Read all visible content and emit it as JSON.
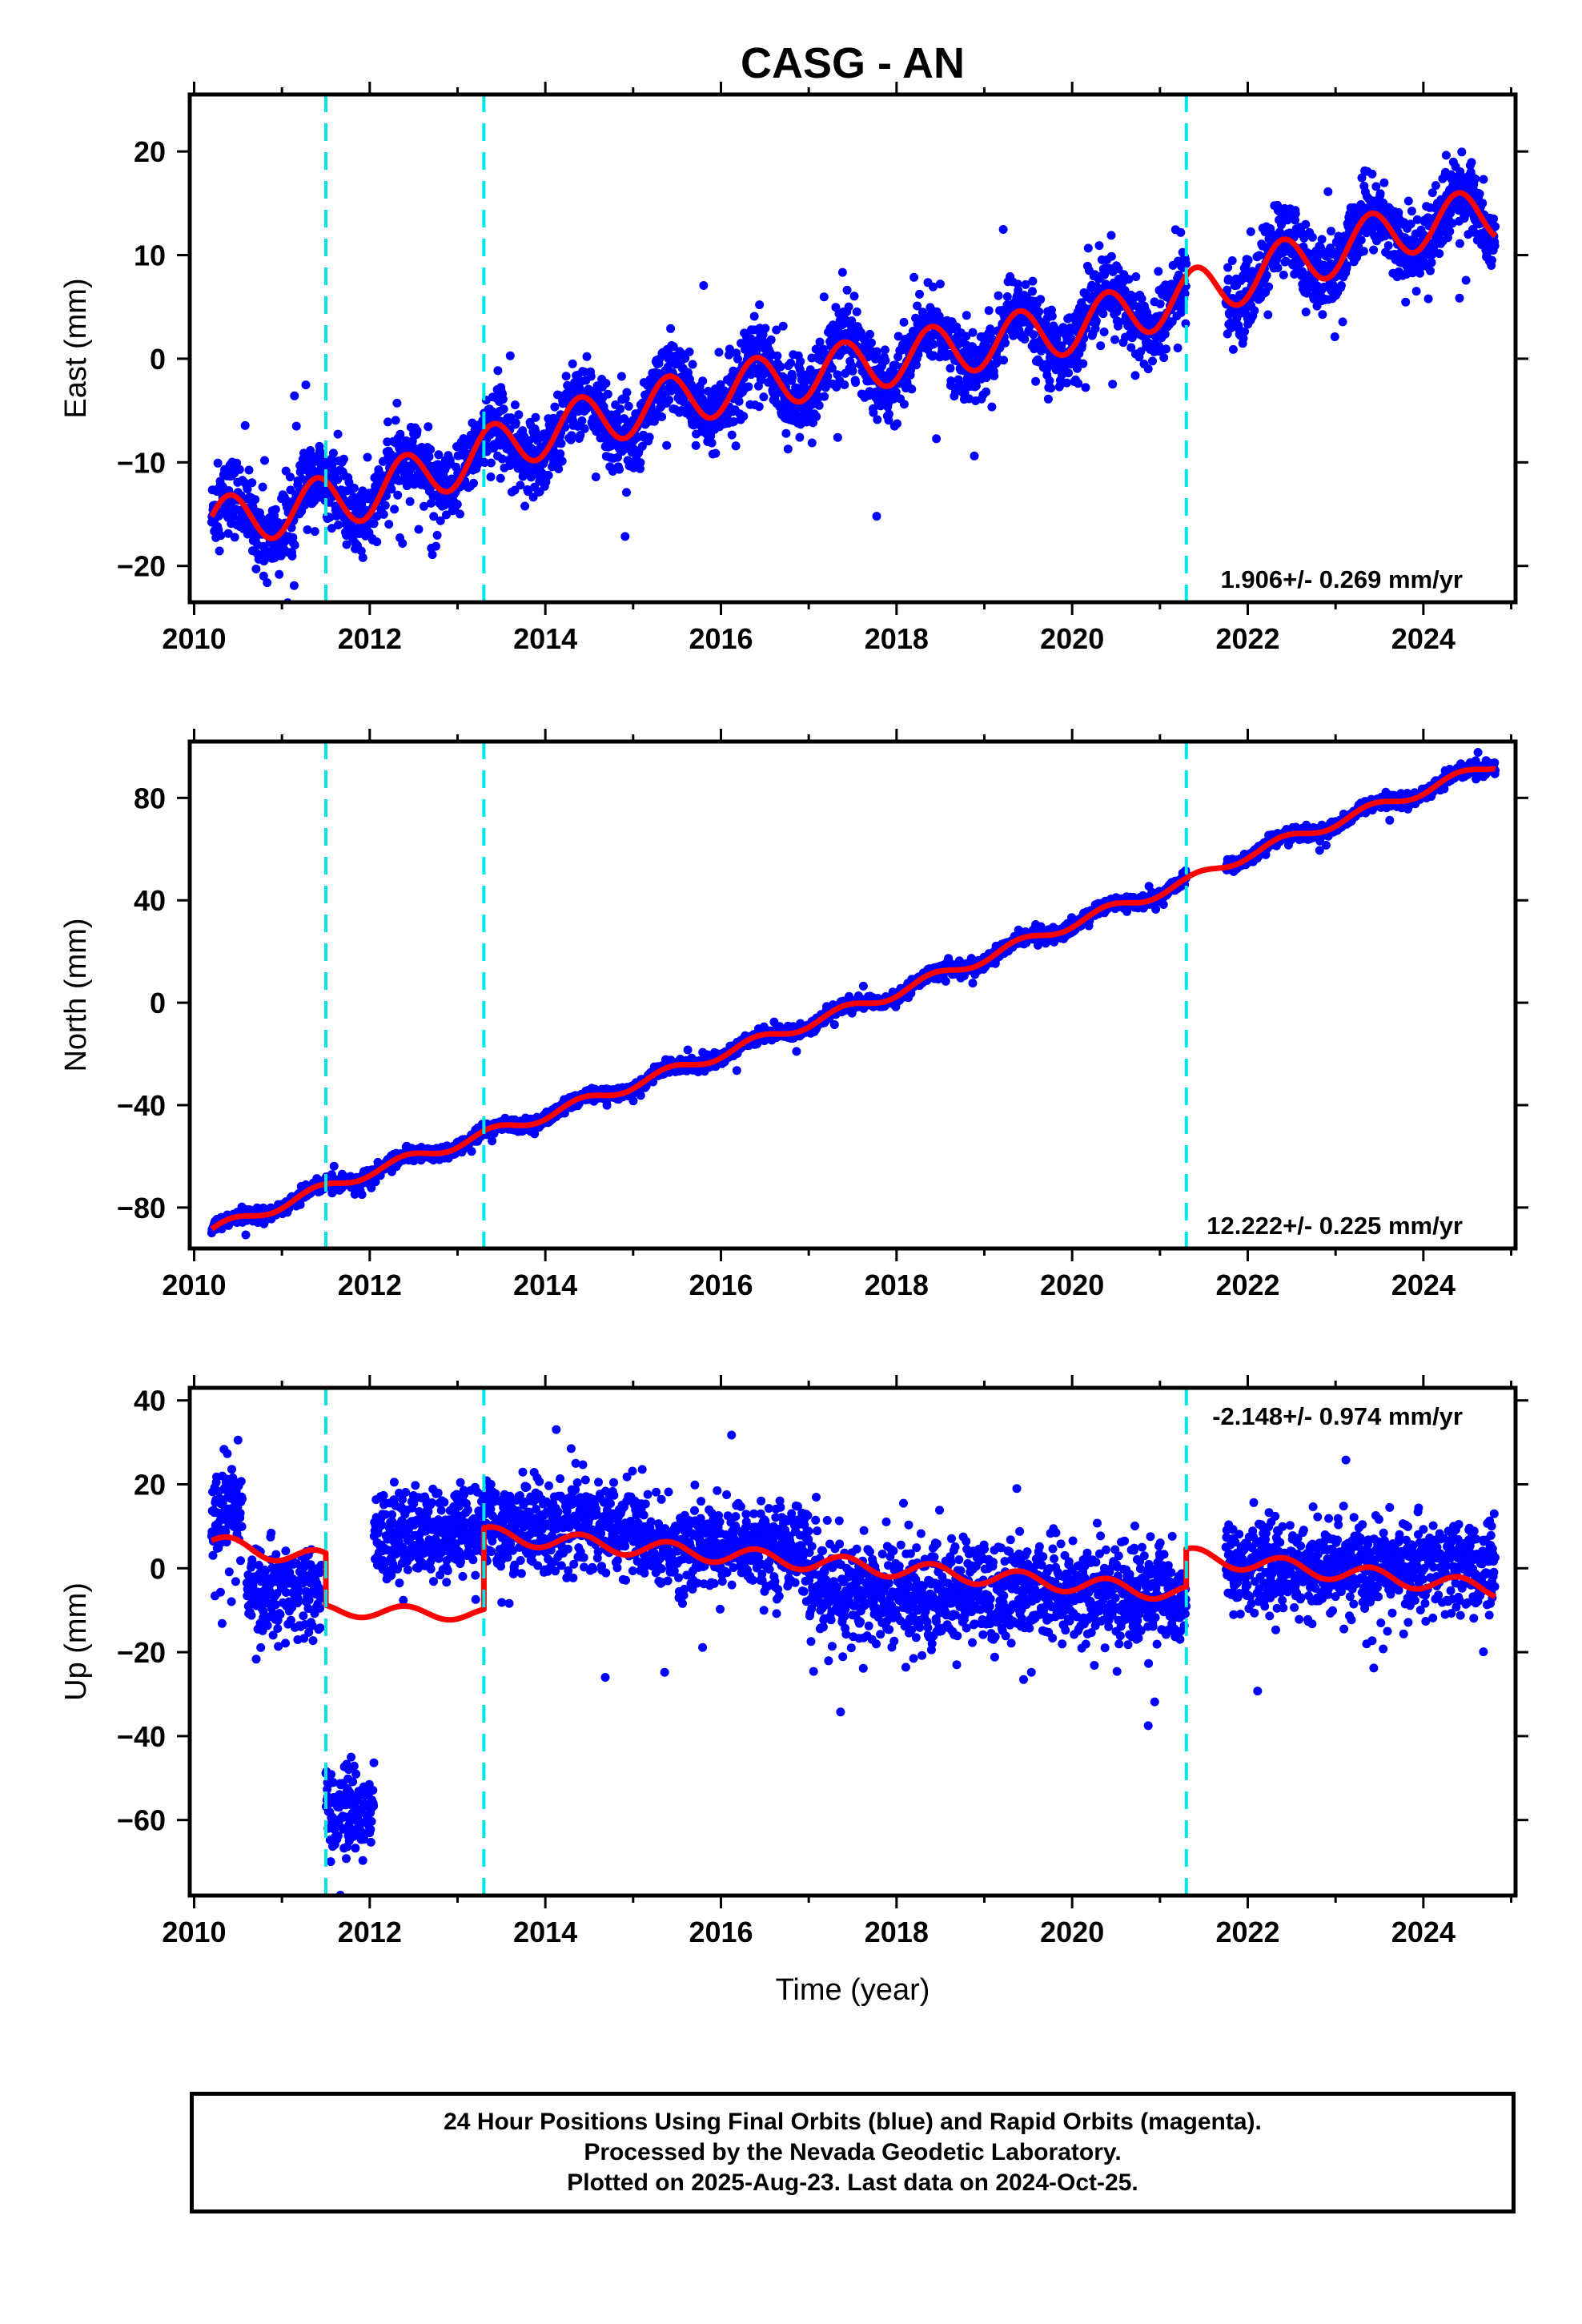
{
  "title": "CASG - AN",
  "footer": {
    "line1": "24 Hour Positions Using Final Orbits (blue) and Rapid Orbits (magenta).",
    "line2": "Processed by the Nevada Geodetic Laboratory.",
    "line3": "Plotted on 2025-Aug-23. Last data on 2024-Oct-25."
  },
  "chart_data": [
    {
      "type": "scatter",
      "component": "East",
      "ylabel": "East (mm)",
      "xlabel": "",
      "xlim": [
        2009.95,
        2025.05
      ],
      "ylim": [
        -23.5,
        25.5
      ],
      "xticks": [
        2010,
        2012,
        2014,
        2016,
        2018,
        2020,
        2022,
        2024
      ],
      "yticks": [
        -20,
        -10,
        0,
        10,
        20
      ],
      "rate_text": "1.906+/- 0.269 mm/yr",
      "rate_position": "bottom-right",
      "offset_lines": [
        2011.5,
        2013.3,
        2021.3
      ],
      "data_gap": [
        2021.3,
        2021.75
      ],
      "data_start": 2010.2,
      "data_end": 2024.82,
      "series": [
        {
          "name": "Final Orbits (blue)",
          "style": "points",
          "color": "#0000ff",
          "trend_points": [
            [
              2010.2,
              -16
            ],
            [
              2012,
              -13
            ],
            [
              2014,
              -7
            ],
            [
              2016,
              -3
            ],
            [
              2018,
              0
            ],
            [
              2020,
              3
            ],
            [
              2021.3,
              6
            ],
            [
              2022,
              8
            ],
            [
              2024,
              13
            ],
            [
              2024.8,
              14
            ]
          ],
          "spread_mm": 3.2,
          "seasonal_amp_mm": 2.5
        },
        {
          "name": "Model",
          "style": "line",
          "color": "#ff0000",
          "trend_points": [
            [
              2010.2,
              -16
            ],
            [
              2012,
              -13
            ],
            [
              2014,
              -7
            ],
            [
              2016,
              -3
            ],
            [
              2018,
              0
            ],
            [
              2020,
              3
            ],
            [
              2021.3,
              6
            ],
            [
              2022,
              8
            ],
            [
              2024,
              13
            ],
            [
              2024.8,
              14
            ]
          ],
          "seasonal_amp_mm": 2.5
        }
      ]
    },
    {
      "type": "scatter",
      "component": "North",
      "ylabel": "North (mm)",
      "xlabel": "",
      "xlim": [
        2009.95,
        2025.05
      ],
      "ylim": [
        -96,
        102
      ],
      "xticks": [
        2010,
        2012,
        2014,
        2016,
        2018,
        2020,
        2022,
        2024
      ],
      "yticks": [
        -80,
        -40,
        0,
        40,
        80
      ],
      "rate_text": "12.222+/- 0.225 mm/yr",
      "rate_position": "bottom-right",
      "offset_lines": [
        2011.5,
        2013.3,
        2021.3
      ],
      "data_gap": [
        2021.3,
        2021.75
      ],
      "data_start": 2010.2,
      "data_end": 2024.82,
      "series": [
        {
          "name": "Final Orbits (blue)",
          "style": "points",
          "color": "#0000ff",
          "trend_points": [
            [
              2010.2,
              -89
            ],
            [
              2012,
              -66
            ],
            [
              2014,
              -44
            ],
            [
              2016,
              -20
            ],
            [
              2018,
              4
            ],
            [
              2020,
              31
            ],
            [
              2021.3,
              47
            ],
            [
              2022,
              58
            ],
            [
              2024,
              83
            ],
            [
              2024.8,
              93
            ]
          ],
          "spread_mm": 2.2,
          "seasonal_amp_mm": 2.0
        },
        {
          "name": "Model",
          "style": "line",
          "color": "#ff0000",
          "trend_points": [
            [
              2010.2,
              -89
            ],
            [
              2012,
              -66
            ],
            [
              2014,
              -44
            ],
            [
              2016,
              -20
            ],
            [
              2018,
              4
            ],
            [
              2020,
              31
            ],
            [
              2021.3,
              47
            ],
            [
              2022,
              58
            ],
            [
              2024,
              83
            ],
            [
              2024.8,
              93
            ]
          ],
          "seasonal_amp_mm": 2.0
        }
      ]
    },
    {
      "type": "scatter",
      "component": "Up",
      "ylabel": "Up (mm)",
      "xlabel": "Time (year)",
      "xlim": [
        2009.95,
        2025.05
      ],
      "ylim": [
        -78,
        43
      ],
      "xticks": [
        2010,
        2012,
        2014,
        2016,
        2018,
        2020,
        2022,
        2024
      ],
      "yticks": [
        -60,
        -40,
        -20,
        0,
        20,
        40
      ],
      "rate_text": "-2.148+/- 0.974 mm/yr",
      "rate_position": "top-right",
      "offset_lines": [
        2011.5,
        2013.3,
        2021.3
      ],
      "data_gap": [
        2021.3,
        2021.75
      ],
      "data_start": 2010.2,
      "data_end": 2024.82,
      "series": [
        {
          "name": "Final Orbits (blue)",
          "style": "points",
          "color": "#0000ff",
          "segments": [
            {
              "x": [
                2010.2,
                2010.55
              ],
              "y": 14,
              "spread_mm": 8
            },
            {
              "x": [
                2010.6,
                2011.45
              ],
              "y": -6,
              "spread_mm": 7
            },
            {
              "x": [
                2011.5,
                2012.05
              ],
              "y": -58,
              "spread_mm": 7
            },
            {
              "x": [
                2012.05,
                2013.3
              ],
              "y": 8,
              "spread_mm": 7
            },
            {
              "x": [
                2013.3,
                2015.1
              ],
              "y": 10,
              "spread_mm": 7
            },
            {
              "x": [
                2015.1,
                2017.0
              ],
              "y": 5,
              "spread_mm": 7
            },
            {
              "x": [
                2017.0,
                2021.3
              ],
              "y": -6,
              "spread_mm": 8
            },
            {
              "x": [
                2021.75,
                2024.82
              ],
              "y": 0,
              "spread_mm": 7
            }
          ]
        },
        {
          "name": "Model",
          "style": "line",
          "color": "#ff0000",
          "segments": [
            {
              "x": [
                2010.2,
                2011.5
              ],
              "y": [
                6,
                2
              ],
              "seasonal_amp_mm": 2.0
            },
            {
              "x": [
                2011.5,
                2013.3
              ],
              "y": [
                -10,
                -11
              ],
              "seasonal_amp_mm": 1.5
            },
            {
              "x": [
                2013.3,
                2021.3
              ],
              "y": [
                8,
                -6
              ],
              "seasonal_amp_mm": 2.0
            },
            {
              "x": [
                2021.3,
                2024.82
              ],
              "y": [
                3,
                -5
              ],
              "seasonal_amp_mm": 2.0
            }
          ]
        }
      ]
    }
  ]
}
